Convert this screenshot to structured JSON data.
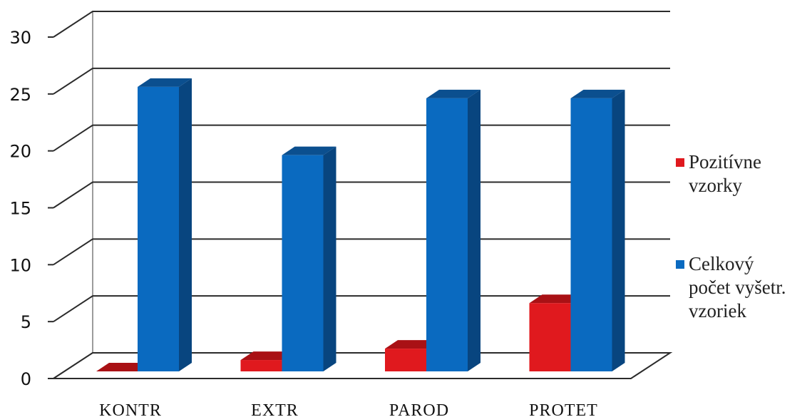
{
  "chart_data": {
    "type": "bar",
    "style": "3d-clustered-column",
    "categories": [
      "KONTR",
      "EXTR",
      "PAROD",
      "PROTET"
    ],
    "series": [
      {
        "name": "Pozitívne vzorky",
        "name_lines": [
          "Pozitívne",
          "vzorky"
        ],
        "color": "#e0191e",
        "top_color": "#a91115",
        "side_color": "#b5121a",
        "values": [
          1,
          2,
          3,
          7
        ]
      },
      {
        "name": "Celkový počet vyšetr. vzoriek",
        "name_lines": [
          "Celkový",
          "počet vyšetr.",
          "vzoriek"
        ],
        "color": "#0a6ac0",
        "top_color": "#0b4f8f",
        "side_color": "#08457f",
        "values": [
          26,
          20,
          25,
          25
        ]
      }
    ],
    "y_ticks": [
      "0",
      "5",
      "10",
      "15",
      "20",
      "25",
      "30"
    ],
    "ylim": [
      0,
      30
    ],
    "grid": true,
    "legend_position": "right",
    "title": "",
    "xlabel": "",
    "ylabel": ""
  }
}
